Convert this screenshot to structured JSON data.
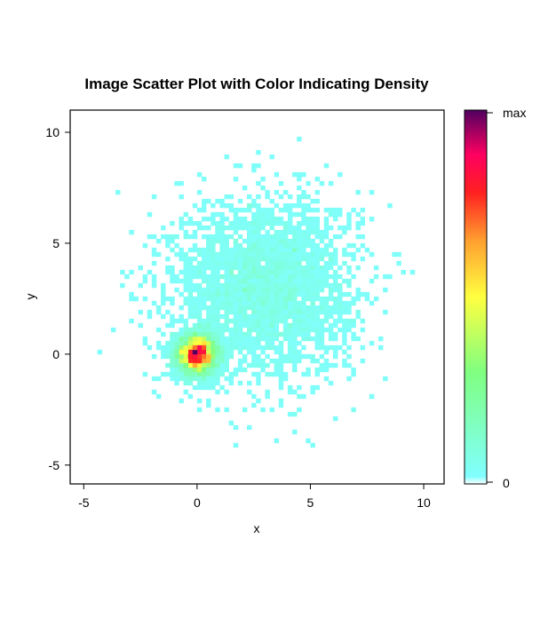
{
  "chart_data": {
    "type": "heatmap",
    "title": "Image Scatter Plot with Color Indicating Density",
    "xlabel": "x",
    "ylabel": "y",
    "xlim": [
      -5.6,
      10.9
    ],
    "ylim": [
      -5.85,
      11.0
    ],
    "x_ticks": [
      -5,
      0,
      5,
      10
    ],
    "x_tick_labels": [
      "-5",
      "0",
      "5",
      "10"
    ],
    "y_ticks": [
      -5,
      0,
      5,
      10
    ],
    "y_tick_labels": [
      "-5",
      "0",
      "5",
      "10"
    ],
    "grid": false,
    "bin_size": 0.2,
    "clusters": [
      {
        "center": [
          0,
          0
        ],
        "sd": 0.5,
        "n": 3000
      },
      {
        "center": [
          3,
          3
        ],
        "sd": 2.0,
        "n": 3000
      }
    ],
    "colorbar": {
      "min_label": "0",
      "max_label": "max",
      "colors": [
        "#ffffff",
        "#80ffff",
        "#80ff80",
        "#ffff40",
        "#ffa030",
        "#ff2020",
        "#ff0060",
        "#500060"
      ],
      "stops": [
        0,
        0.02,
        0.3,
        0.5,
        0.65,
        0.78,
        0.88,
        1.0
      ]
    }
  }
}
